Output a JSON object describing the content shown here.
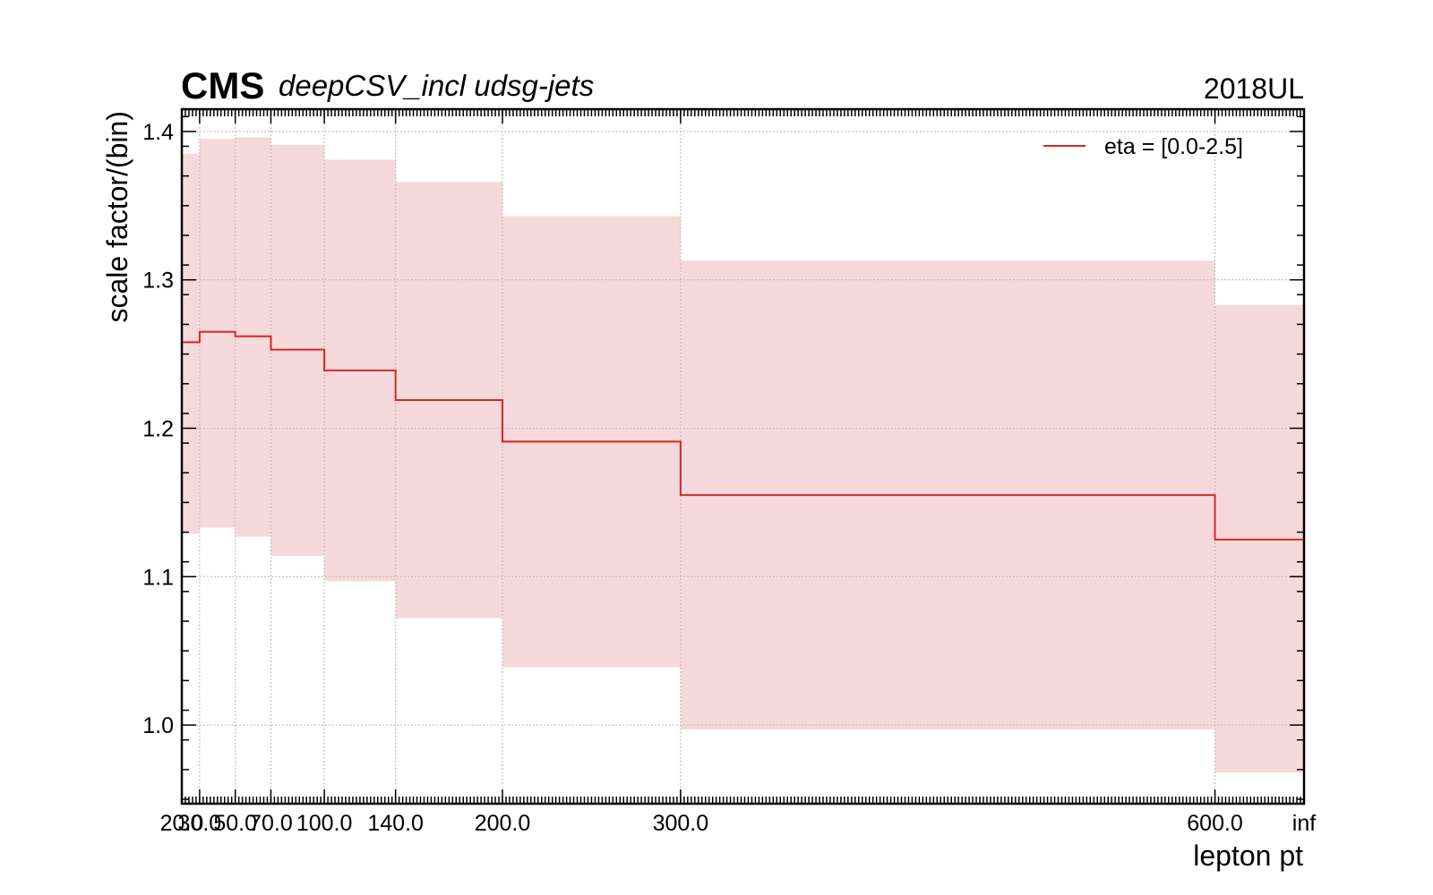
{
  "header": {
    "experiment": "CMS",
    "subtitle": "deepCSV_incl udsg-jets",
    "year": "2018UL"
  },
  "chart_data": {
    "type": "line",
    "style": "step-with-uncertainty-band",
    "xlabel": "lepton pt",
    "ylabel": "scale factor/(bin)",
    "bin_edges_labels": [
      "20.0",
      "30.0",
      "50.0",
      "70.0",
      "100.0",
      "140.0",
      "200.0",
      "300.0",
      "600.0",
      "inf"
    ],
    "bin_edges": [
      20,
      30,
      50,
      70,
      100,
      140,
      200,
      300,
      600,
      650
    ],
    "xlim": [
      20,
      650
    ],
    "ylim": [
      0.947,
      1.415
    ],
    "yticks": [
      1.0,
      1.1,
      1.2,
      1.3,
      1.4
    ],
    "ytick_labels": [
      "1.0",
      "1.1",
      "1.2",
      "1.3",
      "1.4"
    ],
    "grid": true,
    "legend_position": "top-right",
    "series": [
      {
        "name": "eta = [0.0-2.5]",
        "color": "#d62728",
        "band_color": "#f6d9da",
        "values": [
          1.258,
          1.265,
          1.262,
          1.253,
          1.239,
          1.219,
          1.191,
          1.155,
          1.125
        ],
        "upper": [
          1.385,
          1.395,
          1.396,
          1.391,
          1.381,
          1.366,
          1.343,
          1.313,
          1.283
        ],
        "lower": [
          1.129,
          1.133,
          1.127,
          1.114,
          1.097,
          1.072,
          1.039,
          0.997,
          0.968
        ]
      }
    ]
  }
}
